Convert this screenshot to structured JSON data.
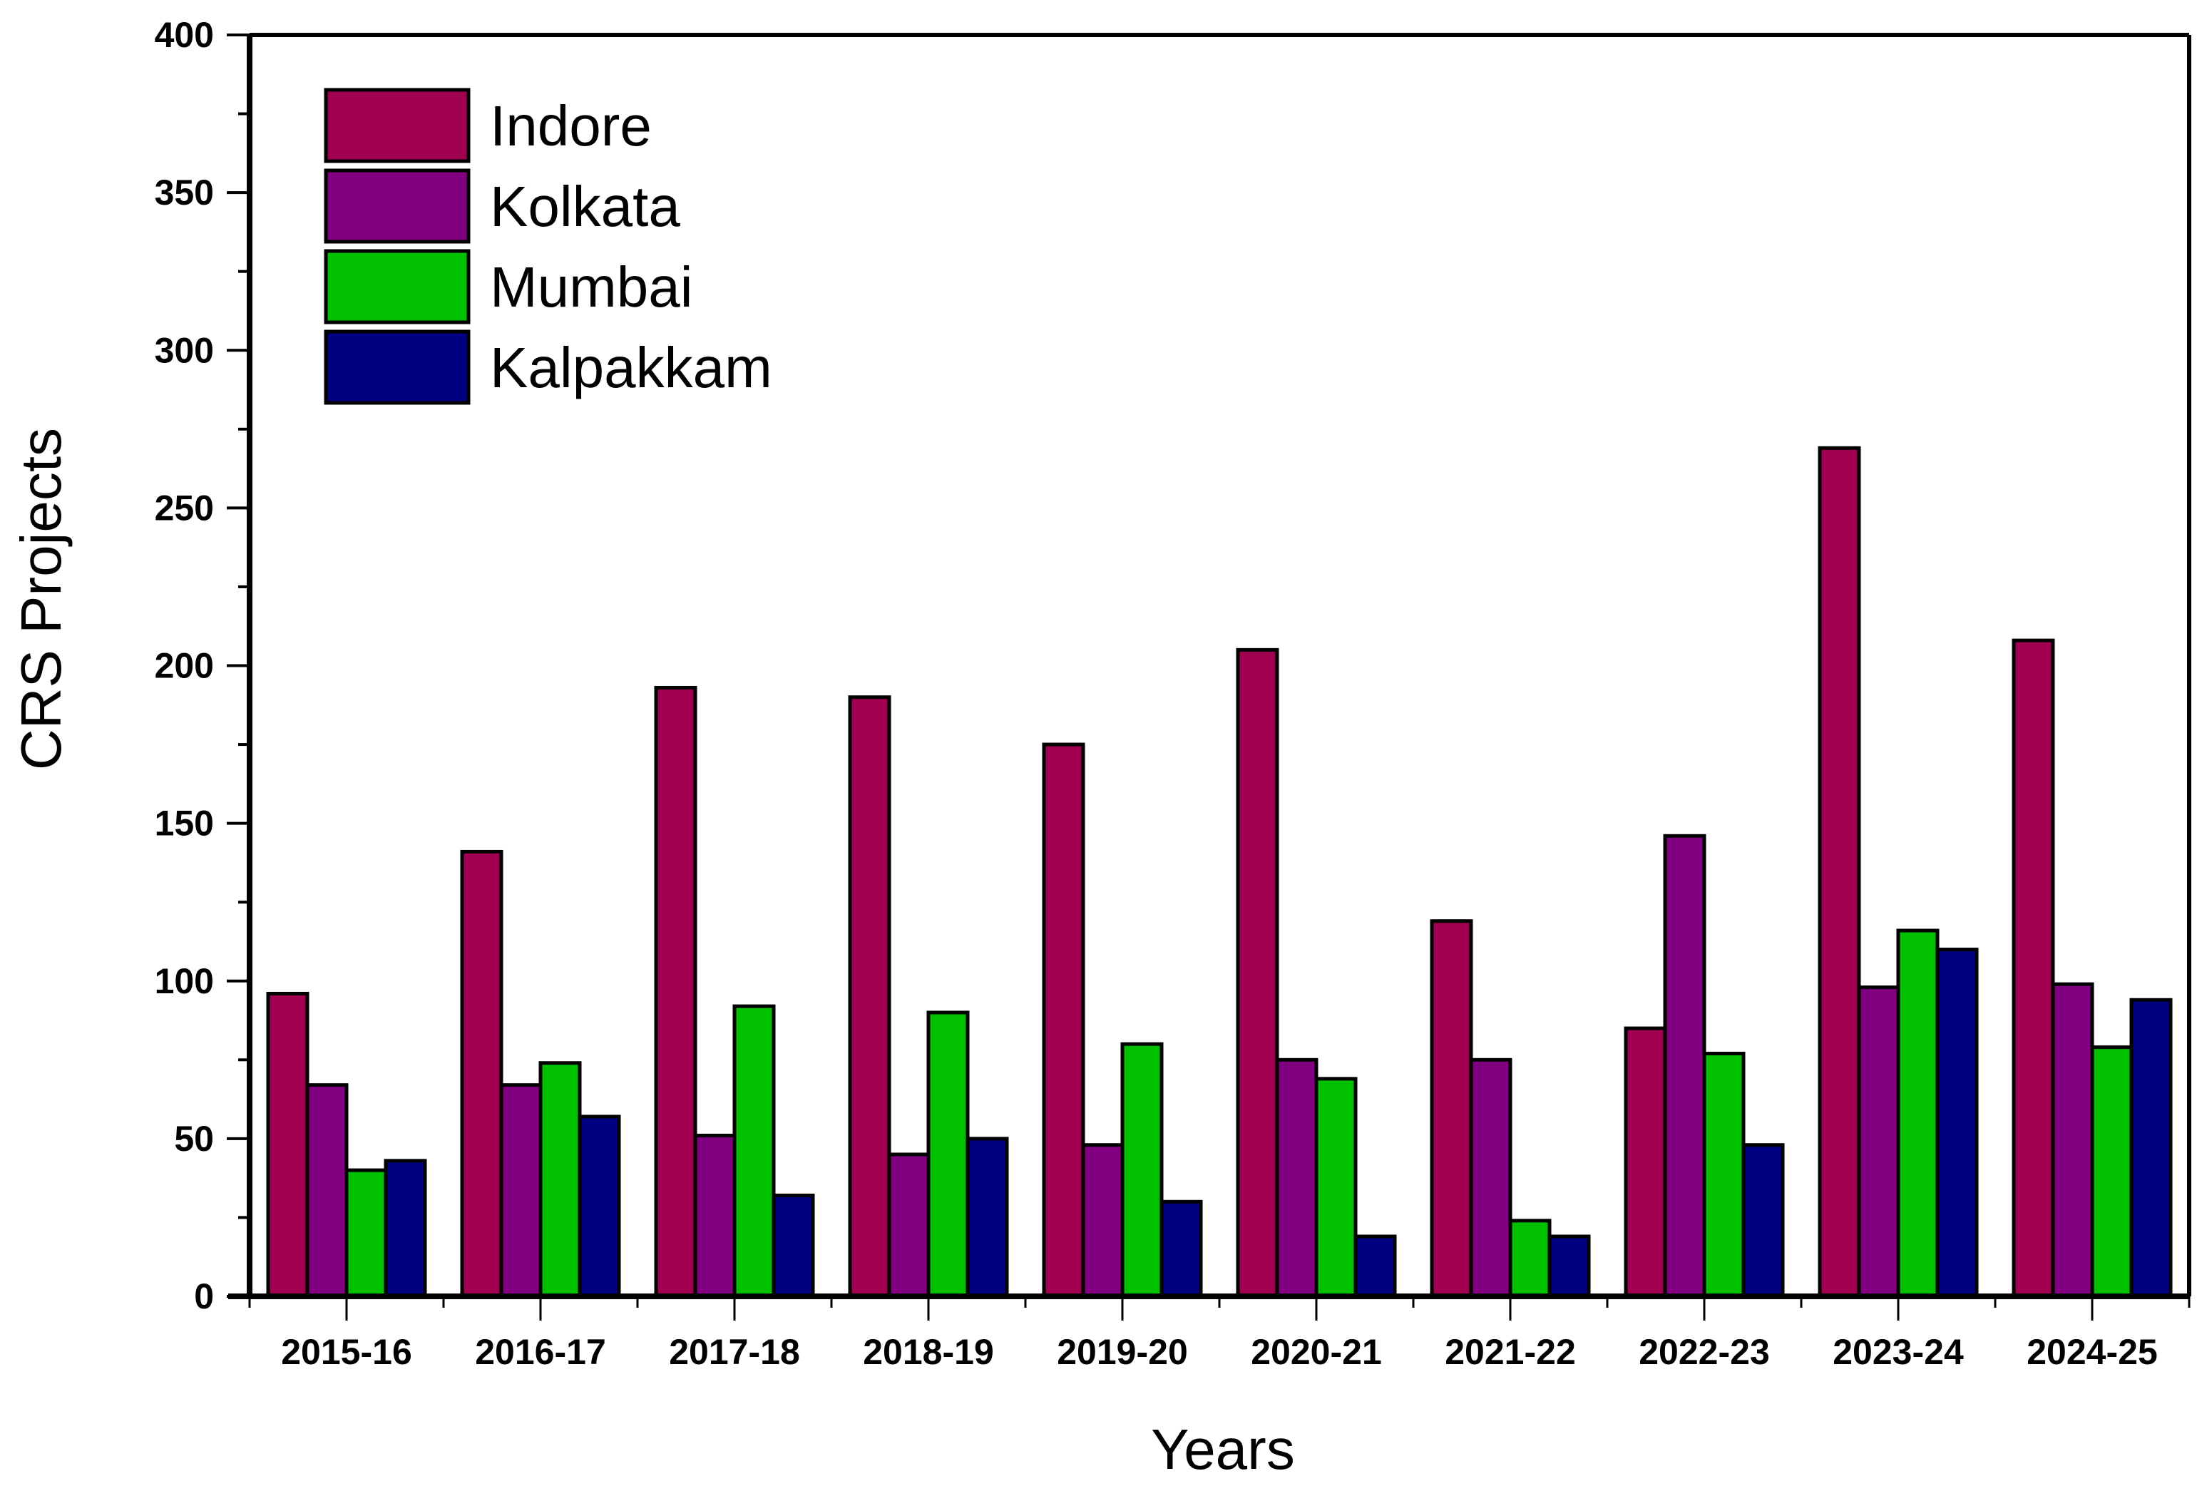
{
  "chart_data": {
    "type": "bar",
    "title": "",
    "xlabel": "Years",
    "ylabel": "CRS Projects",
    "ylim": [
      0,
      400
    ],
    "yticks": [
      0,
      50,
      100,
      150,
      200,
      250,
      300,
      350,
      400
    ],
    "grid": false,
    "legend_position": "top-left",
    "categories": [
      "2015-16",
      "2016-17",
      "2017-18",
      "2018-19",
      "2019-20",
      "2020-21",
      "2021-22",
      "2022-23",
      "2023-24",
      "2024-25"
    ],
    "series": [
      {
        "name": "Indore",
        "color": "#a00050",
        "values": [
          96,
          141,
          193,
          190,
          175,
          205,
          119,
          85,
          269,
          208
        ]
      },
      {
        "name": "Kolkata",
        "color": "#800080",
        "values": [
          67,
          67,
          51,
          45,
          48,
          75,
          75,
          146,
          98,
          99
        ]
      },
      {
        "name": "Mumbai",
        "color": "#00c000",
        "values": [
          40,
          74,
          92,
          90,
          80,
          69,
          24,
          77,
          116,
          79
        ]
      },
      {
        "name": "Kalpakkam",
        "color": "#000080",
        "values": [
          43,
          57,
          32,
          50,
          30,
          19,
          19,
          48,
          110,
          94
        ]
      }
    ]
  }
}
